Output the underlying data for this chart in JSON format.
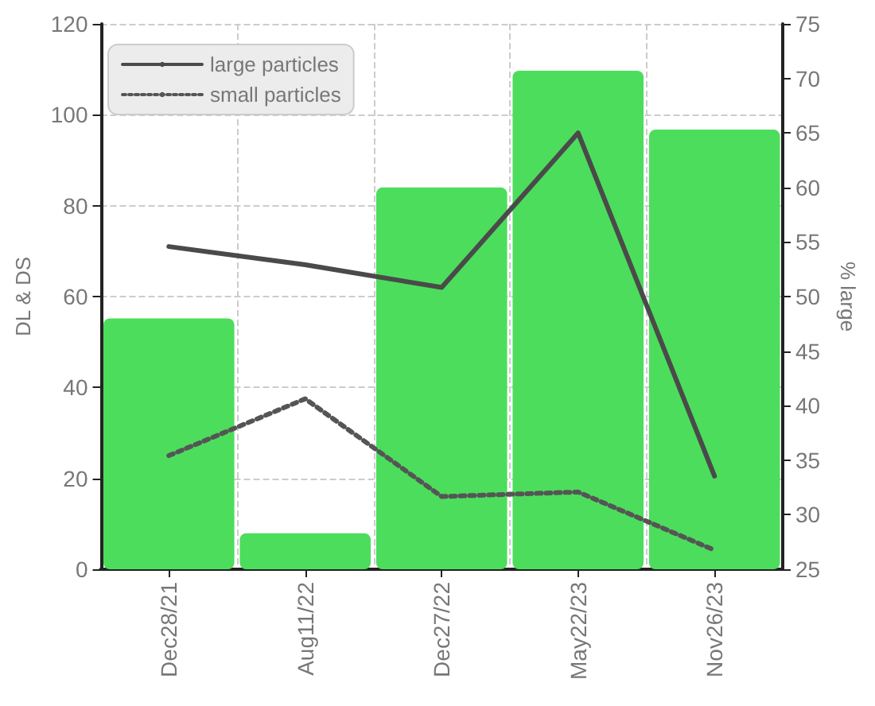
{
  "chart_data": {
    "type": "bar",
    "categories": [
      "Dec28/21",
      "Aug11/22",
      "Dec27/22",
      "May22/23",
      "Nov26/23"
    ],
    "ylabel": "DL & DS",
    "y2label": "% large",
    "series": [
      {
        "axis": "y2",
        "color": "#4cdd5c",
        "values": [
          48,
          28.3,
          60,
          70.7,
          65.3
        ]
      },
      {
        "type": "line",
        "name": "large particles",
        "color": "#4a4a4a",
        "line_style": "solid",
        "values": [
          71,
          67,
          62,
          96,
          20.5
        ]
      },
      {
        "type": "line",
        "name": "small particles",
        "color": "#555555",
        "line_style": "dotted",
        "values": [
          25,
          37.5,
          16,
          17,
          4.2
        ]
      }
    ],
    "ylim": [
      0,
      120
    ],
    "yticks": [
      0,
      20,
      40,
      60,
      80,
      100,
      120
    ],
    "y2lim": [
      25,
      75
    ],
    "y2ticks": [
      25,
      30,
      35,
      40,
      45,
      50,
      55,
      60,
      65,
      70,
      75
    ],
    "grid": true,
    "legend": "top left",
    "marker": "none"
  }
}
